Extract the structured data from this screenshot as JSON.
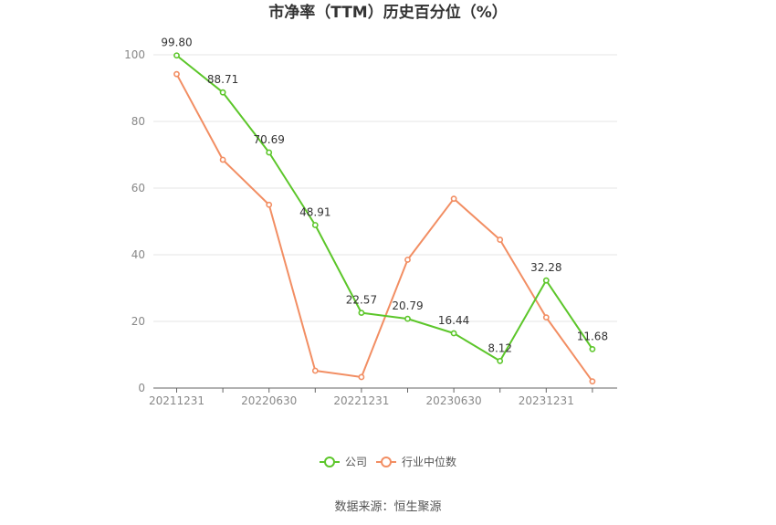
{
  "chart_data": {
    "type": "line",
    "title": "市净率（TTM）历史百分位（%）",
    "xlabel": "",
    "ylabel": "",
    "ylim": [
      0,
      100
    ],
    "yticks": [
      0,
      20,
      40,
      60,
      80,
      100
    ],
    "x": [
      "20211231",
      "20220331",
      "20220630",
      "20220930",
      "20221231",
      "20230331",
      "20230630",
      "20230930",
      "20231231",
      "20240331"
    ],
    "xtick_labels": [
      "20211231",
      "20220630",
      "20221231",
      "20230630",
      "20231231"
    ],
    "grid": true,
    "legend_position": "bottom",
    "series": [
      {
        "name": "公司",
        "color": "#5cc62a",
        "values": [
          99.8,
          88.71,
          70.69,
          48.91,
          22.57,
          20.79,
          16.44,
          8.12,
          32.28,
          11.68
        ],
        "labels": [
          "99.80",
          "88.71",
          "70.69",
          "48.91",
          "22.57",
          "20.79",
          "16.44",
          "8.12",
          "32.28",
          "11.68"
        ]
      },
      {
        "name": "行业中位数",
        "color": "#f28e63",
        "values": [
          94.2,
          68.5,
          55.0,
          5.2,
          3.3,
          38.5,
          56.8,
          44.5,
          21.2,
          2.0
        ]
      }
    ]
  },
  "source": "数据来源：恒生聚源"
}
